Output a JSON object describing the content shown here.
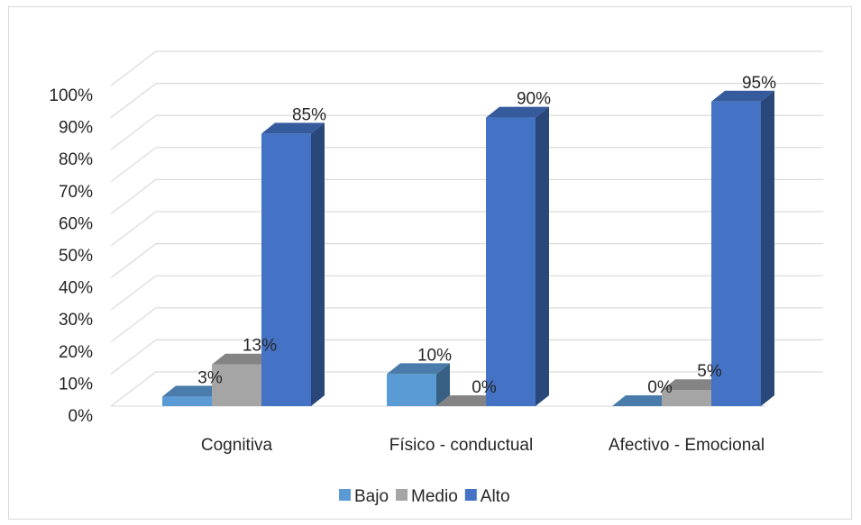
{
  "chart_data": {
    "type": "bar",
    "categories": [
      "Cognitiva",
      "Físico - conductual",
      "Afectivo - Emocional"
    ],
    "series": [
      {
        "name": "Bajo",
        "values": [
          3,
          10,
          0
        ],
        "color": "#5b9bd5"
      },
      {
        "name": "Medio",
        "values": [
          13,
          0,
          5
        ],
        "color": "#a5a5a5"
      },
      {
        "name": "Alto",
        "values": [
          85,
          90,
          95
        ],
        "color": "#4472c4"
      }
    ],
    "data_labels": [
      [
        "3%",
        "10%",
        "0%"
      ],
      [
        "13%",
        "0%",
        "5%"
      ],
      [
        "85%",
        "90%",
        "95%"
      ]
    ],
    "y_tick_labels": [
      "0%",
      "10%",
      "20%",
      "30%",
      "40%",
      "50%",
      "60%",
      "70%",
      "80%",
      "90%",
      "100%"
    ],
    "ylim": [
      0,
      100
    ],
    "grid": true,
    "legend_position": "bottom",
    "style": "3d-clustered-column"
  }
}
